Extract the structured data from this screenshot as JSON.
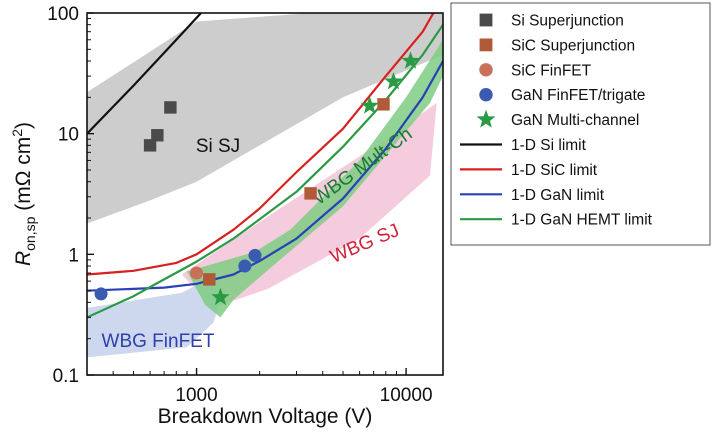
{
  "chart_data": {
    "type": "scatter",
    "xlabel": "Breakdown Voltage (V)",
    "ylabel": {
      "main": "R",
      "sub": "on,sp",
      "units": " (mΩ cm",
      "sup": "2",
      "close": ")"
    },
    "x_scale": "log",
    "y_scale": "log",
    "xlim": [
      300,
      15000
    ],
    "ylim": [
      0.1,
      100
    ],
    "x_ticks": [
      {
        "value": 1000,
        "label": "1000"
      },
      {
        "value": 10000,
        "label": "10000"
      }
    ],
    "y_ticks": [
      {
        "value": 0.1,
        "label": "0.1"
      },
      {
        "value": 1,
        "label": "1"
      },
      {
        "value": 10,
        "label": "10"
      },
      {
        "value": 100,
        "label": "100"
      }
    ],
    "regions": [
      {
        "label": "Si SJ",
        "color": "#c8c8c8",
        "label_color": "#111111",
        "polygon": [
          [
            300,
            22
          ],
          [
            1000,
            85
          ],
          [
            3500,
            100
          ],
          [
            15000,
            100
          ],
          [
            15000,
            45
          ],
          [
            5000,
            20
          ],
          [
            2000,
            8
          ],
          [
            1000,
            4
          ],
          [
            600,
            2.8
          ],
          [
            300,
            1.8
          ]
        ]
      },
      {
        "label": "WBG SJ",
        "color": "#f3c6d9",
        "label_color": "#d0203a",
        "polygon": [
          [
            850,
            0.68
          ],
          [
            2500,
            2.4
          ],
          [
            8000,
            9
          ],
          [
            14000,
            18
          ],
          [
            13000,
            4.5
          ],
          [
            6000,
            1.35
          ],
          [
            2200,
            0.52
          ],
          [
            1200,
            0.36
          ]
        ]
      },
      {
        "label": "WBG FinFET",
        "color": "#c8d4ec",
        "label_color": "#2f40a8",
        "polygon": [
          [
            300,
            0.36
          ],
          [
            850,
            0.48
          ],
          [
            1250,
            0.68
          ],
          [
            1300,
            0.4
          ],
          [
            1200,
            0.27
          ],
          [
            900,
            0.17
          ],
          [
            300,
            0.14
          ]
        ]
      },
      {
        "label": "WBG Mult-Ch",
        "color": "#7fcc84",
        "label_color": "#1a7a35",
        "polygon": [
          [
            900,
            0.72
          ],
          [
            1900,
            1.05
          ],
          [
            2800,
            1.6
          ],
          [
            6000,
            6
          ],
          [
            10000,
            20
          ],
          [
            15000,
            60
          ],
          [
            15000,
            30
          ],
          [
            13000,
            18
          ],
          [
            5000,
            2.5
          ],
          [
            2500,
            0.9
          ],
          [
            1500,
            0.42
          ],
          [
            1300,
            0.3
          ],
          [
            1100,
            0.38
          ]
        ]
      }
    ],
    "series": [
      {
        "name": "Si Superjunction",
        "marker": "square",
        "color": "#4a4a4a",
        "points": [
          [
            600,
            8
          ],
          [
            650,
            9.7
          ],
          [
            750,
            16.5
          ]
        ]
      },
      {
        "name": "SiC Superjunction",
        "marker": "square",
        "color": "#b05a38",
        "points": [
          [
            1150,
            0.62
          ],
          [
            3500,
            3.2
          ],
          [
            7800,
            17.5
          ]
        ]
      },
      {
        "name": "SiC FinFET",
        "marker": "circle",
        "color": "#c87058",
        "points": [
          [
            1000,
            0.7
          ]
        ]
      },
      {
        "name": "GaN FinFET/trigate",
        "marker": "circle",
        "color": "#3a5cb0",
        "points": [
          [
            350,
            0.47
          ],
          [
            1700,
            0.8
          ],
          [
            1900,
            0.98
          ]
        ]
      },
      {
        "name": "GaN Multi-channel",
        "marker": "star",
        "color": "#2a9a45",
        "points": [
          [
            1300,
            0.44
          ],
          [
            6700,
            17
          ],
          [
            8700,
            27
          ],
          [
            10500,
            40
          ]
        ]
      }
    ],
    "lines": [
      {
        "name": "1-D Si limit",
        "color": "#111111",
        "points": [
          [
            300,
            10
          ],
          [
            500,
            25
          ],
          [
            800,
            60
          ],
          [
            1050,
            100
          ]
        ]
      },
      {
        "name": "1-D SiC limit",
        "color": "#d82020",
        "points": [
          [
            300,
            0.68
          ],
          [
            500,
            0.73
          ],
          [
            800,
            0.85
          ],
          [
            1000,
            1.0
          ],
          [
            1500,
            1.6
          ],
          [
            2000,
            2.4
          ],
          [
            3000,
            4.8
          ],
          [
            5000,
            11
          ],
          [
            8000,
            30
          ],
          [
            12000,
            70
          ],
          [
            13500,
            100
          ]
        ]
      },
      {
        "name": "1-D GaN limit",
        "color": "#2a40b8",
        "points": [
          [
            300,
            0.5
          ],
          [
            700,
            0.53
          ],
          [
            1000,
            0.57
          ],
          [
            1500,
            0.68
          ],
          [
            2000,
            0.88
          ],
          [
            3000,
            1.35
          ],
          [
            5000,
            2.9
          ],
          [
            8000,
            7.5
          ],
          [
            12000,
            20
          ],
          [
            15000,
            40
          ]
        ]
      },
      {
        "name": "1-D GaN HEMT limit",
        "color": "#2a9a45",
        "points": [
          [
            300,
            0.3
          ],
          [
            500,
            0.45
          ],
          [
            700,
            0.62
          ],
          [
            1000,
            0.87
          ],
          [
            1500,
            1.35
          ],
          [
            2000,
            1.95
          ],
          [
            3000,
            3.3
          ],
          [
            5000,
            7.8
          ],
          [
            8000,
            19
          ],
          [
            12000,
            45
          ],
          [
            15000,
            80
          ]
        ]
      }
    ],
    "legend_position": "top-right"
  }
}
